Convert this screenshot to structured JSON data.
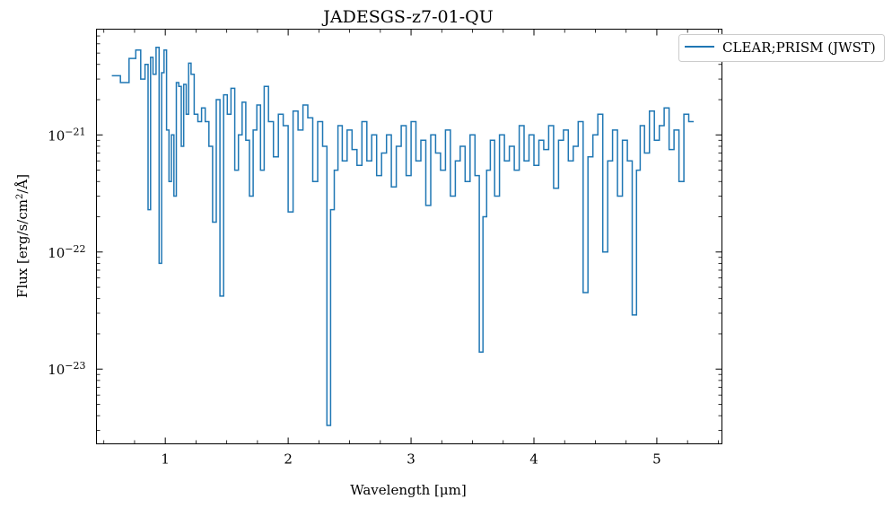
{
  "chart_data": {
    "type": "line",
    "step": true,
    "title": "JADESGS-z7-01-QU",
    "xlabel": "Wavelength [μm]",
    "ylabel": "Flux [erg/s/cm²/Å]",
    "yscale": "log",
    "xlim": [
      0.44,
      5.53
    ],
    "ylim": [
      2.3e-24,
      8e-21
    ],
    "grid": false,
    "legend_position": "upper-right-outside",
    "x_ticks": [
      {
        "value": 1,
        "label": "1"
      },
      {
        "value": 2,
        "label": "2"
      },
      {
        "value": 3,
        "label": "3"
      },
      {
        "value": 4,
        "label": "4"
      },
      {
        "value": 5,
        "label": "5"
      }
    ],
    "y_ticks": [
      {
        "value": 1e-23,
        "base": "10",
        "exp": "−23"
      },
      {
        "value": 1e-22,
        "base": "10",
        "exp": "−22"
      },
      {
        "value": 1e-21,
        "base": "10",
        "exp": "−21"
      }
    ],
    "series": [
      {
        "name": "CLEAR;PRISM (JWST)",
        "color": "#1f77b4",
        "x": [
          0.6,
          0.67,
          0.74,
          0.78,
          0.82,
          0.85,
          0.87,
          0.89,
          0.91,
          0.94,
          0.96,
          0.98,
          1.0,
          1.02,
          1.04,
          1.06,
          1.08,
          1.1,
          1.12,
          1.14,
          1.16,
          1.18,
          1.2,
          1.22,
          1.25,
          1.28,
          1.31,
          1.34,
          1.37,
          1.4,
          1.43,
          1.46,
          1.49,
          1.52,
          1.55,
          1.58,
          1.61,
          1.64,
          1.67,
          1.7,
          1.73,
          1.76,
          1.79,
          1.82,
          1.86,
          1.9,
          1.94,
          1.98,
          2.02,
          2.06,
          2.1,
          2.14,
          2.18,
          2.22,
          2.26,
          2.3,
          2.33,
          2.36,
          2.39,
          2.42,
          2.46,
          2.5,
          2.54,
          2.58,
          2.62,
          2.66,
          2.7,
          2.74,
          2.78,
          2.82,
          2.86,
          2.9,
          2.94,
          2.98,
          3.02,
          3.06,
          3.1,
          3.14,
          3.18,
          3.22,
          3.26,
          3.3,
          3.34,
          3.38,
          3.42,
          3.46,
          3.5,
          3.54,
          3.57,
          3.6,
          3.63,
          3.66,
          3.7,
          3.74,
          3.78,
          3.82,
          3.86,
          3.9,
          3.94,
          3.98,
          4.02,
          4.06,
          4.1,
          4.14,
          4.18,
          4.22,
          4.26,
          4.3,
          4.34,
          4.38,
          4.42,
          4.46,
          4.5,
          4.54,
          4.58,
          4.62,
          4.66,
          4.7,
          4.74,
          4.78,
          4.82,
          4.85,
          4.88,
          4.92,
          4.96,
          5.0,
          5.04,
          5.08,
          5.12,
          5.16,
          5.2,
          5.24,
          5.28
        ],
        "y": [
          3.2e-21,
          2.8e-21,
          4.5e-21,
          5.3e-21,
          3e-21,
          4e-21,
          2.3e-22,
          4.6e-21,
          3.3e-21,
          5.6e-21,
          8e-23,
          3.4e-21,
          5.3e-21,
          1.1e-21,
          4e-22,
          1e-21,
          3e-22,
          2.8e-21,
          2.6e-21,
          8e-22,
          2.7e-21,
          1.5e-21,
          4.1e-21,
          3.3e-21,
          1.5e-21,
          1.3e-21,
          1.7e-21,
          1.3e-21,
          8e-22,
          1.8e-22,
          2e-21,
          4.2e-23,
          2.2e-21,
          1.5e-21,
          2.5e-21,
          5e-22,
          1e-21,
          1.9e-21,
          9e-22,
          3e-22,
          1.1e-21,
          1.8e-21,
          5e-22,
          2.6e-21,
          1.3e-21,
          6.5e-22,
          1.5e-21,
          1.2e-21,
          2.2e-22,
          1.6e-21,
          1.1e-21,
          1.8e-21,
          1.4e-21,
          4e-22,
          1.3e-21,
          8e-22,
          3.3e-24,
          2.3e-22,
          5e-22,
          1.2e-21,
          6e-22,
          1.1e-21,
          7.5e-22,
          5.5e-22,
          1.3e-21,
          6e-22,
          1e-21,
          4.5e-22,
          7e-22,
          1e-21,
          3.6e-22,
          8e-22,
          1.2e-21,
          4.5e-22,
          1.3e-21,
          6e-22,
          9e-22,
          2.5e-22,
          1e-21,
          7e-22,
          5e-22,
          1.1e-21,
          3e-22,
          6e-22,
          8e-22,
          4e-22,
          1e-21,
          4.5e-22,
          1.4e-23,
          2e-22,
          5e-22,
          9e-22,
          3e-22,
          1e-21,
          6e-22,
          8e-22,
          5e-22,
          1.2e-21,
          6e-22,
          1e-21,
          5.5e-22,
          9e-22,
          7.5e-22,
          1.2e-21,
          3.5e-22,
          9e-22,
          1.1e-21,
          6e-22,
          8e-22,
          1.3e-21,
          4.5e-23,
          6.5e-22,
          1e-21,
          1.5e-21,
          1e-22,
          6e-22,
          1.1e-21,
          3e-22,
          9e-22,
          6e-22,
          2.9e-23,
          5e-22,
          1.2e-21,
          7e-22,
          1.6e-21,
          9e-22,
          1.2e-21,
          1.7e-21,
          7.5e-22,
          1.1e-21,
          4e-22,
          1.5e-21,
          1.3e-21
        ]
      }
    ]
  }
}
